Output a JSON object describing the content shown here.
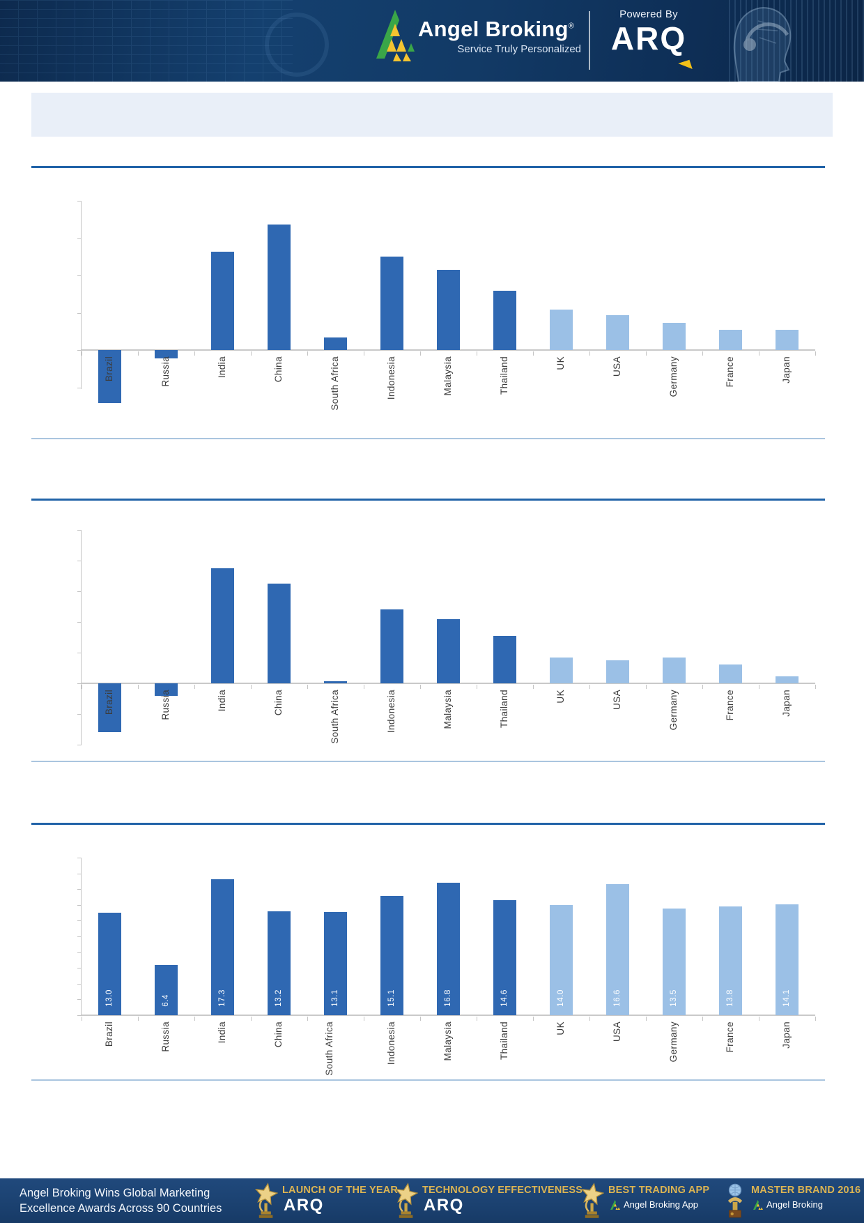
{
  "header": {
    "brand": "Angel Broking",
    "registered_mark": "®",
    "tagline": "Service Truly Personalized",
    "powered_by": "Powered By",
    "arq_logo": "ARQ"
  },
  "chart_data": [
    {
      "type": "bar",
      "categories": [
        "Brazil",
        "Russia",
        "India",
        "China",
        "South Africa",
        "Indonesia",
        "Malaysia",
        "Thailand",
        "UK",
        "USA",
        "Germany",
        "France",
        "Japan"
      ],
      "values": [
        -7.1,
        -1.1,
        13.2,
        16.8,
        1.7,
        12.5,
        10.8,
        8.0,
        5.4,
        4.7,
        3.7,
        2.7,
        2.7
      ],
      "ylim": [
        -5.2,
        20
      ],
      "tick_step": 5,
      "grid": false,
      "y_tick_labels_shown": false,
      "data_labels_shown": false,
      "x_labels_rotation_deg": 90,
      "group_colors": {
        "dark_blue": "#2f68b2",
        "light_blue": "#9bc0e6"
      },
      "light_from_index": 8,
      "legend": "none"
    },
    {
      "type": "bar",
      "categories": [
        "Brazil",
        "Russia",
        "India",
        "China",
        "South Africa",
        "Indonesia",
        "Malaysia",
        "Thailand",
        "UK",
        "USA",
        "Germany",
        "France",
        "Japan"
      ],
      "values": [
        -3.2,
        -0.8,
        7.5,
        6.5,
        0.15,
        4.8,
        4.2,
        3.1,
        1.7,
        1.5,
        1.7,
        1.25,
        0.45
      ],
      "ylim": [
        -4,
        10
      ],
      "tick_step": 2,
      "grid": false,
      "y_tick_labels_shown": false,
      "data_labels_shown": false,
      "x_labels_rotation_deg": 90,
      "group_colors": {
        "dark_blue": "#2f68b2",
        "light_blue": "#9bc0e6"
      },
      "light_from_index": 8,
      "legend": "none"
    },
    {
      "type": "bar",
      "categories": [
        "Brazil",
        "Russia",
        "India",
        "China",
        "South Africa",
        "Indonesia",
        "Malaysia",
        "Thailand",
        "UK",
        "USA",
        "Germany",
        "France",
        "Japan"
      ],
      "values": [
        13.0,
        6.4,
        17.3,
        13.2,
        13.1,
        15.1,
        16.8,
        14.6,
        14.0,
        16.6,
        13.5,
        13.8,
        14.1
      ],
      "value_labels": [
        "13.0",
        "6.4",
        "17.3",
        "13.2",
        "13.1",
        "15.1",
        "16.8",
        "14.6",
        "14.0",
        "16.6",
        "13.5",
        "13.8",
        "14.1"
      ],
      "ylim": [
        0,
        20
      ],
      "tick_step": 2,
      "grid": false,
      "y_tick_labels_shown": false,
      "data_labels_shown": true,
      "value_label_color": "#ffffff",
      "x_labels_rotation_deg": 90,
      "wrap_labels": true,
      "group_colors": {
        "dark_blue": "#2f68b2",
        "light_blue": "#9bc0e6"
      },
      "light_from_index": 8,
      "legend": "none"
    }
  ],
  "footer": {
    "headline_line1": "Angel Broking Wins Global Marketing",
    "headline_line2": "Excellence Awards Across 90 Countries",
    "awards": [
      {
        "icon": "star-trophy-icon",
        "title": "LAUNCH OF THE YEAR",
        "subtitle": "ARQ"
      },
      {
        "icon": "star-trophy-icon",
        "title": "TECHNOLOGY EFFECTIVENESS",
        "subtitle": "ARQ"
      },
      {
        "icon": "star-trophy-icon",
        "title": "BEST TRADING APP",
        "subtitle": "Angel Broking App"
      },
      {
        "icon": "globe-trophy-icon",
        "title": "MASTER BRAND 2016",
        "subtitle": "Angel Broking"
      }
    ]
  }
}
